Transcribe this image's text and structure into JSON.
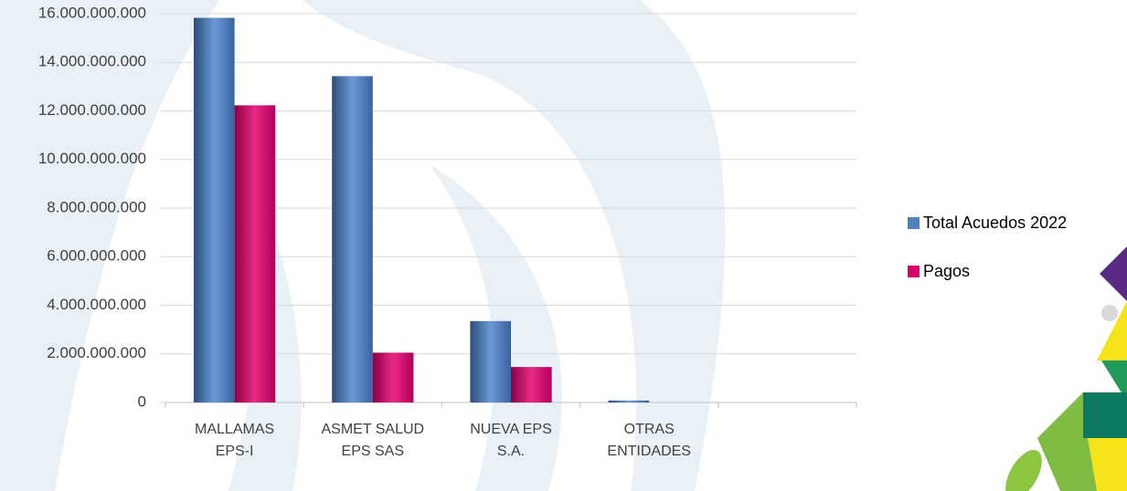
{
  "chart_data": {
    "type": "bar",
    "categories": [
      "MALLAMAS EPS-I",
      "ASMET SALUD EPS SAS",
      "NUEVA EPS S.A.",
      "OTRAS ENTIDADES",
      null
    ],
    "series": [
      {
        "name": "Total  Acuedos 2022",
        "color": "#4f81bd",
        "values": [
          15830000000,
          13430000000,
          3350000000,
          80000000,
          null
        ]
      },
      {
        "name": "Pagos",
        "color": "#d6006c",
        "values": [
          12230000000,
          2050000000,
          1460000000,
          0,
          null
        ]
      }
    ],
    "ylim": [
      0,
      16000000000
    ],
    "yticks": [
      0,
      {
        "value": 2000000000,
        "label": "2.000.000.000"
      },
      {
        "value": 4000000000,
        "label": "4.000.000.000"
      },
      {
        "value": 6000000000,
        "label": "6.000.000.000"
      },
      {
        "value": 8000000000,
        "label": "8.000.000.000"
      },
      {
        "value": 10000000000,
        "label": "10.000.000.000"
      },
      {
        "value": 12000000000,
        "label": "12.000.000.000"
      },
      {
        "value": 14000000000,
        "label": "14.000.000.000"
      },
      {
        "value": 16000000000,
        "label": "16.000.000.000"
      }
    ],
    "grid": true,
    "legend": "right"
  }
}
